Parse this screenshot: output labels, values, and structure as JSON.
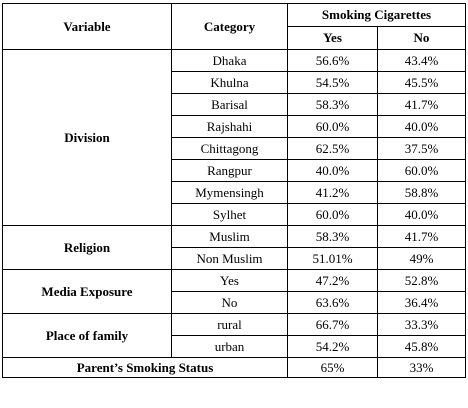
{
  "table": {
    "headers": {
      "variable": "Variable",
      "category": "Category",
      "smoking": "Smoking Cigarettes",
      "yes": "Yes",
      "no": "No"
    },
    "groups": [
      {
        "variable": "Division",
        "rows": [
          {
            "category": "Dhaka",
            "yes": "56.6%",
            "no": "43.4%"
          },
          {
            "category": "Khulna",
            "yes": "54.5%",
            "no": "45.5%"
          },
          {
            "category": "Barisal",
            "yes": "58.3%",
            "no": "41.7%"
          },
          {
            "category": "Rajshahi",
            "yes": "60.0%",
            "no": "40.0%"
          },
          {
            "category": "Chittagong",
            "yes": "62.5%",
            "no": "37.5%"
          },
          {
            "category": "Rangpur",
            "yes": "40.0%",
            "no": "60.0%"
          },
          {
            "category": "Mymensingh",
            "yes": "41.2%",
            "no": "58.8%"
          },
          {
            "category": "Sylhet",
            "yes": "60.0%",
            "no": "40.0%"
          }
        ]
      },
      {
        "variable": "Religion",
        "rows": [
          {
            "category": "Muslim",
            "yes": "58.3%",
            "no": "41.7%"
          },
          {
            "category": "Non Muslim",
            "yes": "51.01%",
            "no": "49%"
          }
        ]
      },
      {
        "variable": "Media Exposure",
        "rows": [
          {
            "category": "Yes",
            "yes": "47.2%",
            "no": "52.8%"
          },
          {
            "category": "No",
            "yes": "63.6%",
            "no": "36.4%"
          }
        ]
      },
      {
        "variable": "Place of family",
        "rows": [
          {
            "category": "rural",
            "yes": "66.7%",
            "no": "33.3%"
          },
          {
            "category": "urban",
            "yes": "54.2%",
            "no": "45.8%"
          }
        ]
      },
      {
        "variable": "Parent’s Smoking Status",
        "rows": [
          {
            "category": "",
            "yes": "65%",
            "no": "33%"
          }
        ]
      }
    ]
  }
}
